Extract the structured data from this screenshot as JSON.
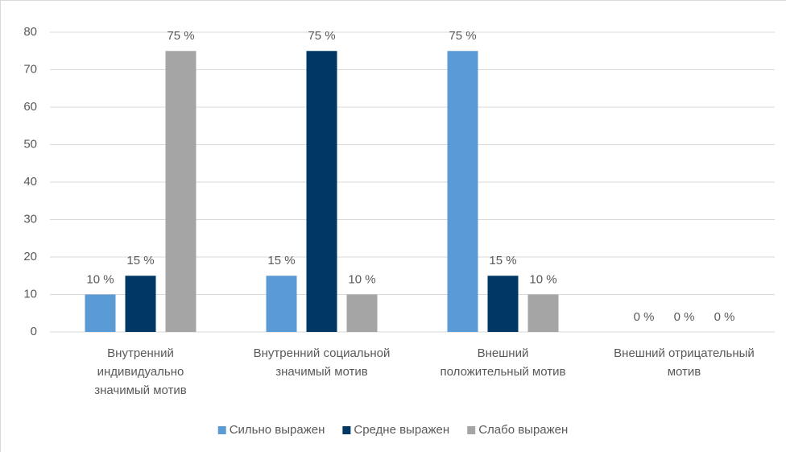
{
  "chart_data": {
    "type": "bar",
    "categories": [
      "Внутренний\nиндивидуально\nзначимый мотив",
      "Внутренний социальной\nзначимый мотив",
      "Внешний\nположительный мотив",
      "Внешний отрицательный\nмотив"
    ],
    "series": [
      {
        "name": "Сильно выражен",
        "color": "#5b9bd5",
        "values": [
          10,
          15,
          75,
          0
        ],
        "value_labels": [
          "10 %",
          "15 %",
          "75 %",
          "0 %"
        ]
      },
      {
        "name": "Средне выражен",
        "color": "#003865",
        "values": [
          15,
          75,
          15,
          0
        ],
        "value_labels": [
          "15 %",
          "75 %",
          "15 %",
          "0 %"
        ]
      },
      {
        "name": "Слабо выражен",
        "color": "#a5a5a5",
        "values": [
          75,
          10,
          10,
          0
        ],
        "value_labels": [
          "75 %",
          "10 %",
          "10 %",
          "0 %"
        ]
      }
    ],
    "ylim": [
      0,
      80
    ],
    "yticks": [
      0,
      10,
      20,
      30,
      40,
      50,
      60,
      70,
      80
    ],
    "grid": true,
    "legend": "bottom"
  }
}
